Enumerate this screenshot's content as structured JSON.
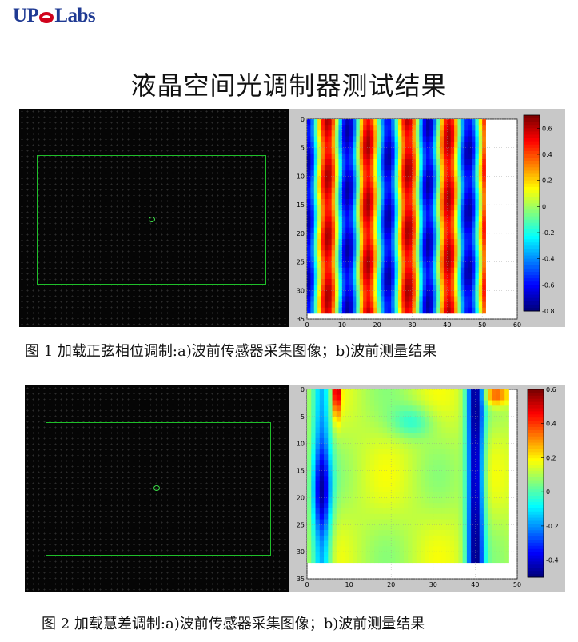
{
  "header": {
    "logo_text": "UPOLabs",
    "logo_parts": [
      "UP",
      "Labs"
    ]
  },
  "title": "液晶空间光调制器测试结果",
  "figures": [
    {
      "caption": "图 1 加载正弦相位调制:a)波前传感器采集图像；b)波前测量结果",
      "chart_data": {
        "type": "heatmap",
        "x_ticks": [
          0,
          10,
          20,
          30,
          40,
          50,
          60
        ],
        "y_ticks": [
          0,
          5,
          10,
          15,
          20,
          25,
          30,
          35
        ],
        "xlim": [
          0,
          60
        ],
        "ylim": [
          35,
          0
        ],
        "data_extent_x": [
          0,
          51
        ],
        "data_extent_y": [
          0,
          34
        ],
        "colorbar_ticks": [
          0.6,
          0.4,
          0.2,
          0,
          -0.2,
          -0.4,
          -0.6,
          -0.8
        ],
        "colorbar_range": [
          -0.8,
          0.7
        ],
        "pattern": "vertical sinusoidal stripes",
        "stripe_peaks_x": [
          6,
          18,
          29,
          40
        ],
        "stripe_troughs_x": [
          1,
          12,
          24,
          34,
          46
        ],
        "grid": true
      }
    },
    {
      "caption": "图 2 加载慧差调制:a)波前传感器采集图像；b)波前测量结果",
      "chart_data": {
        "type": "heatmap",
        "x_ticks": [
          0,
          10,
          20,
          30,
          40,
          50
        ],
        "y_ticks": [
          0,
          5,
          10,
          15,
          20,
          25,
          30,
          35
        ],
        "xlim": [
          0,
          50
        ],
        "ylim": [
          35,
          0
        ],
        "data_extent_x": [
          0,
          48
        ],
        "data_extent_y": [
          0,
          32
        ],
        "colorbar_ticks": [
          0.6,
          0.4,
          0.2,
          0,
          -0.2,
          -0.4
        ],
        "colorbar_range": [
          -0.5,
          0.6
        ],
        "pattern": "coma aberration",
        "low_bands_x": [
          3,
          40
        ],
        "high_band_x": 7,
        "grid": true
      }
    }
  ],
  "colors": {
    "jet": [
      "#00008f",
      "#0000ff",
      "#0080ff",
      "#00ffff",
      "#80ff80",
      "#ffff00",
      "#ff8000",
      "#ff0000",
      "#800000"
    ],
    "sensor_box": "#1fbf2a",
    "logo_blue": "#1f3a93",
    "logo_red": "#d0021b"
  }
}
